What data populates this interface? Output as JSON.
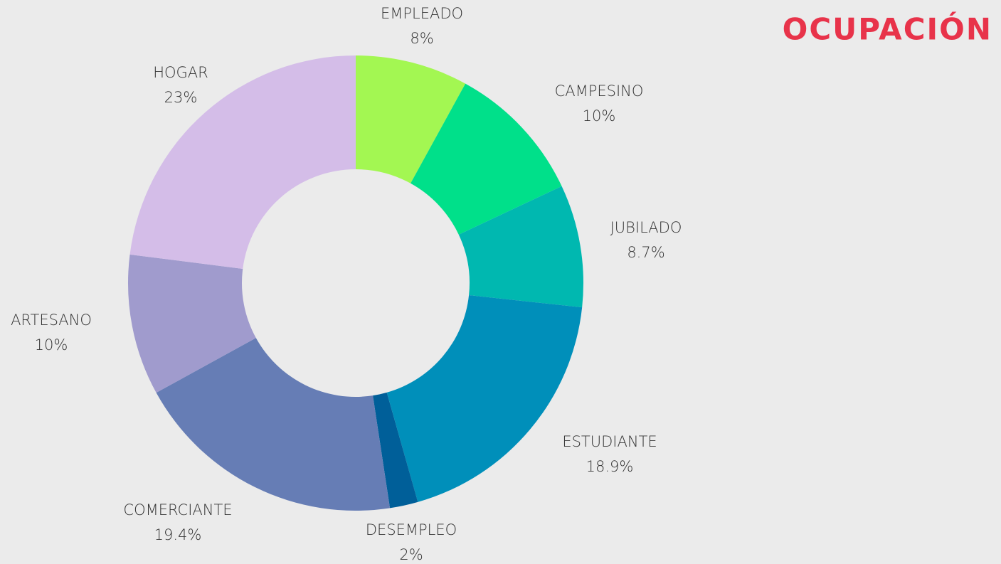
{
  "chart_data": {
    "type": "donut",
    "title": "OCUPACIÓN",
    "categories": [
      "EMPLEADO",
      "CAMPESINO",
      "JUBILADO",
      "ESTUDIANTE",
      "DESEMPLEO",
      "COMERCIANTE",
      "ARTESANO",
      "HOGAR"
    ],
    "values": [
      8,
      10,
      8.7,
      18.9,
      2,
      19.4,
      10,
      23
    ],
    "value_labels": [
      "8%",
      "10%",
      "8.7%",
      "18.9%",
      "2%",
      "19.4%",
      "10%",
      "23%"
    ],
    "colors": [
      "#a3f752",
      "#00e08a",
      "#00b8b0",
      "#008fba",
      "#005f99",
      "#667db5",
      "#a09bcd",
      "#d4bde8"
    ]
  }
}
